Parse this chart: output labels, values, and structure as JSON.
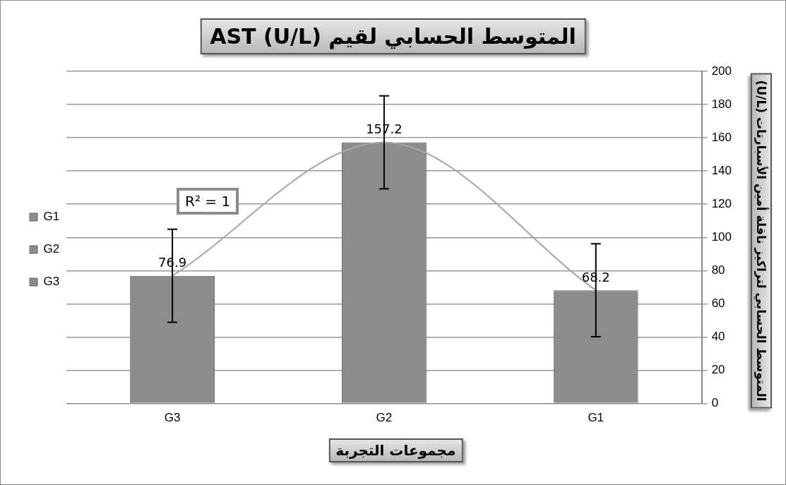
{
  "chart_data": {
    "type": "bar",
    "title": "المتوسط الحسابي لقيم AST (U/L)",
    "xlabel": "مجموعات التجربة",
    "ylabel": "المتوسط الحسابي لتراكيز ناقلة أمين الأسبارتات (U/L)",
    "categories": [
      "G3",
      "G2",
      "G1"
    ],
    "series": [
      {
        "name": "G1",
        "color": "#8c8c8c",
        "values": [
          null,
          null,
          68.2
        ],
        "errors": [
          null,
          null,
          28
        ],
        "value_labels": [
          null,
          null,
          "68.2"
        ]
      },
      {
        "name": "G2",
        "color": "#8c8c8c",
        "values": [
          null,
          157.2,
          null
        ],
        "errors": [
          null,
          28,
          null
        ],
        "value_labels": [
          null,
          "157.2",
          null
        ]
      },
      {
        "name": "G3",
        "color": "#8c8c8c",
        "values": [
          76.9,
          null,
          null
        ],
        "errors": [
          28,
          null,
          null
        ],
        "value_labels": [
          "76.9",
          null,
          null
        ]
      },
      {
        "type": "line",
        "x": [
          "G3",
          "G2",
          "G1"
        ],
        "color": "#a6a6a6",
        "values": [
          76.9,
          157.2,
          68.2
        ]
      }
    ],
    "ylim": [
      0,
      200
    ],
    "yticks": [
      0,
      20,
      40,
      60,
      80,
      100,
      120,
      140,
      160,
      180,
      200
    ],
    "grid": "y",
    "legend": "left",
    "annotations": [
      "R² = 1"
    ]
  }
}
